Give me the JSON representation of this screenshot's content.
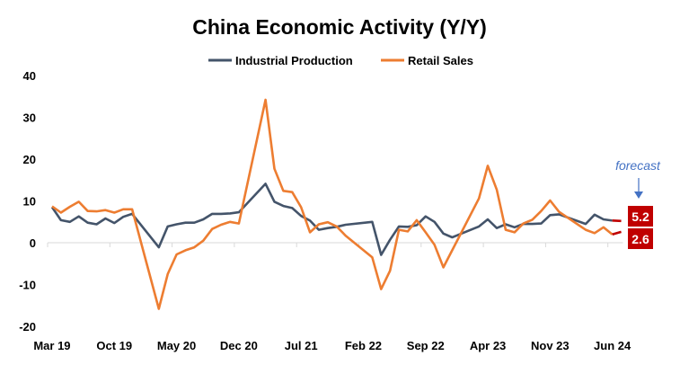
{
  "chart_data": {
    "type": "line",
    "title": "China Economic Activity (Y/Y)",
    "xlabel": "",
    "ylabel": "",
    "ylim": [
      -20,
      40
    ],
    "yticks": [
      -20,
      -10,
      0,
      10,
      20,
      30,
      40
    ],
    "legend_placement": "top-center",
    "grid": false,
    "x": [
      "Mar 19",
      "Apr 19",
      "May 19",
      "Jun 19",
      "Jul 19",
      "Aug 19",
      "Sep 19",
      "Oct 19",
      "Nov 19",
      "Dec 19",
      "Jan 20",
      "Feb 20",
      "Mar 20",
      "Apr 20",
      "May 20",
      "Jun 20",
      "Jul 20",
      "Aug 20",
      "Sep 20",
      "Oct 20",
      "Nov 20",
      "Dec 20",
      "Jan 21",
      "Feb 21",
      "Mar 21",
      "Apr 21",
      "May 21",
      "Jun 21",
      "Jul 21",
      "Aug 21",
      "Sep 21",
      "Oct 21",
      "Nov 21",
      "Dec 21",
      "Jan 22",
      "Feb 22",
      "Mar 22",
      "Apr 22",
      "May 22",
      "Jun 22",
      "Jul 22",
      "Aug 22",
      "Sep 22",
      "Oct 22",
      "Nov 22",
      "Dec 22",
      "Jan 23",
      "Feb 23",
      "Mar 23",
      "Apr 23",
      "May 23",
      "Jun 23",
      "Jul 23",
      "Aug 23",
      "Sep 23",
      "Oct 23",
      "Nov 23",
      "Dec 23",
      "Jan 24",
      "Feb 24",
      "Mar 24",
      "Apr 24",
      "May 24",
      "Jun 24",
      "Jul 24"
    ],
    "xtick_labels": [
      "Mar 19",
      "Oct 19",
      "May 20",
      "Dec 20",
      "Jul 21",
      "Feb 22",
      "Sep 22",
      "Apr 23",
      "Nov 23",
      "Jun 24"
    ],
    "series": [
      {
        "name": "Industrial Production",
        "color": "#44546A",
        "values": [
          8.5,
          5.4,
          5.0,
          6.3,
          4.8,
          4.4,
          5.8,
          4.7,
          6.2,
          6.9,
          null,
          null,
          -1.1,
          3.9,
          4.4,
          4.8,
          4.8,
          5.6,
          6.9,
          6.9,
          7.0,
          7.3,
          null,
          null,
          14.1,
          9.8,
          8.8,
          8.3,
          6.4,
          5.3,
          3.1,
          3.5,
          3.8,
          4.3,
          null,
          null,
          5.0,
          -2.9,
          0.7,
          3.9,
          3.8,
          4.2,
          6.3,
          5.0,
          2.2,
          1.3,
          null,
          null,
          3.9,
          5.6,
          3.5,
          4.4,
          3.7,
          4.5,
          4.5,
          4.6,
          6.6,
          6.8,
          null,
          null,
          4.5,
          6.7,
          5.6,
          5.3,
          5.2
        ]
      },
      {
        "name": "Retail Sales",
        "color": "#ED7D31",
        "values": [
          8.7,
          7.2,
          8.6,
          9.8,
          7.6,
          7.5,
          7.8,
          7.2,
          8.0,
          8.0,
          null,
          null,
          -15.8,
          -7.5,
          -2.8,
          -1.8,
          -1.1,
          0.5,
          3.3,
          4.3,
          5.0,
          4.6,
          null,
          null,
          34.2,
          17.7,
          12.4,
          12.1,
          8.5,
          2.5,
          4.4,
          4.9,
          3.9,
          1.7,
          null,
          null,
          -3.5,
          -11.1,
          -6.7,
          3.1,
          2.7,
          5.4,
          2.5,
          -0.5,
          -5.9,
          -1.8,
          null,
          null,
          10.6,
          18.4,
          12.7,
          3.1,
          2.5,
          4.6,
          5.5,
          7.6,
          10.1,
          7.4,
          null,
          null,
          3.1,
          2.3,
          3.7,
          2.0,
          2.6
        ]
      }
    ],
    "forecast": {
      "label": "forecast",
      "period": "Jul 24",
      "color": "#C00000",
      "values": {
        "Industrial Production": "5.2",
        "Retail Sales": "2.6"
      }
    }
  }
}
